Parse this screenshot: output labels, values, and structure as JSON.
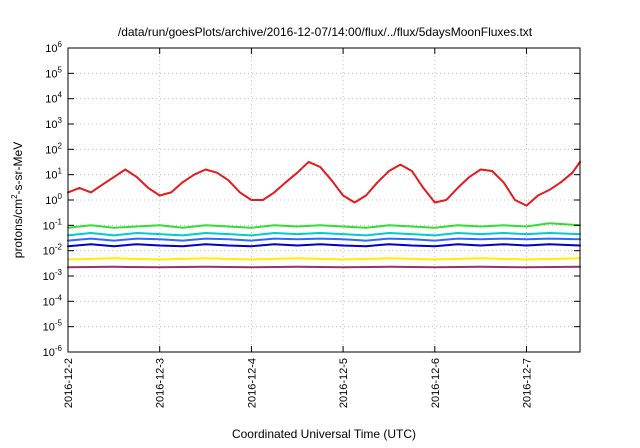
{
  "chart_data": {
    "type": "line",
    "title": "/data/run/goesPlots/archive/2016-12-07/14:00/flux/../flux/5daysMoonFluxes.txt",
    "xlabel": "Coordinated Universal Time (UTC)",
    "ylabel": {
      "prefix": "protons/cm",
      "sup": "2",
      "suffix": "-s-sr-MeV"
    },
    "y_scale": "log",
    "ylim_exponents": [
      -6,
      6
    ],
    "y_tick_base": "10",
    "y_tick_exponents": [
      "-6",
      "-5",
      "-4",
      "-3",
      "-2",
      "-1",
      "0",
      "1",
      "2",
      "3",
      "4",
      "5",
      "6"
    ],
    "xlim": [
      "2016-12-02",
      "2016-12-07T14:00"
    ],
    "x_ticks": [
      "2016-12-2",
      "2016-12-3",
      "2016-12-4",
      "2016-12-5",
      "2016-12-6",
      "2016-12-7"
    ],
    "grid": true,
    "legend": "none",
    "series": [
      {
        "color": "#e41a1c",
        "values": [
          [
            "2016-12-02T00:00",
            2.0
          ],
          [
            "2016-12-02T03:00",
            3.0
          ],
          [
            "2016-12-02T06:00",
            2.0
          ],
          [
            "2016-12-02T09:00",
            4.0
          ],
          [
            "2016-12-02T12:00",
            8.0
          ],
          [
            "2016-12-02T15:00",
            16.0
          ],
          [
            "2016-12-02T18:00",
            8.0
          ],
          [
            "2016-12-02T21:00",
            3.0
          ],
          [
            "2016-12-03T00:00",
            1.5
          ],
          [
            "2016-12-03T03:00",
            2.0
          ],
          [
            "2016-12-03T06:00",
            5.0
          ],
          [
            "2016-12-03T09:00",
            10.0
          ],
          [
            "2016-12-03T12:00",
            16.0
          ],
          [
            "2016-12-03T15:00",
            12.0
          ],
          [
            "2016-12-03T18:00",
            6.0
          ],
          [
            "2016-12-03T21:00",
            2.0
          ],
          [
            "2016-12-04T00:00",
            1.0
          ],
          [
            "2016-12-04T03:00",
            1.0
          ],
          [
            "2016-12-04T06:00",
            2.0
          ],
          [
            "2016-12-04T09:00",
            5.0
          ],
          [
            "2016-12-04T12:00",
            12.0
          ],
          [
            "2016-12-04T15:00",
            32.0
          ],
          [
            "2016-12-04T18:00",
            20.0
          ],
          [
            "2016-12-04T21:00",
            6.0
          ],
          [
            "2016-12-05T00:00",
            1.5
          ],
          [
            "2016-12-05T03:00",
            0.8
          ],
          [
            "2016-12-05T06:00",
            1.5
          ],
          [
            "2016-12-05T09:00",
            5.0
          ],
          [
            "2016-12-05T12:00",
            14.0
          ],
          [
            "2016-12-05T15:00",
            25.0
          ],
          [
            "2016-12-05T18:00",
            14.0
          ],
          [
            "2016-12-05T21:00",
            3.0
          ],
          [
            "2016-12-06T00:00",
            0.8
          ],
          [
            "2016-12-06T03:00",
            1.0
          ],
          [
            "2016-12-06T06:00",
            3.0
          ],
          [
            "2016-12-06T09:00",
            8.0
          ],
          [
            "2016-12-06T12:00",
            16.0
          ],
          [
            "2016-12-06T15:00",
            14.0
          ],
          [
            "2016-12-06T18:00",
            5.0
          ],
          [
            "2016-12-06T21:00",
            1.0
          ],
          [
            "2016-12-07T00:00",
            0.6
          ],
          [
            "2016-12-07T03:00",
            1.5
          ],
          [
            "2016-12-07T06:00",
            2.5
          ],
          [
            "2016-12-07T09:00",
            5.0
          ],
          [
            "2016-12-07T12:00",
            12.0
          ],
          [
            "2016-12-07T14:00",
            32.0
          ]
        ]
      },
      {
        "color": "#33dd33",
        "values": [
          [
            "2016-12-02T00:00",
            0.08
          ],
          [
            "2016-12-02T06:00",
            0.1
          ],
          [
            "2016-12-02T12:00",
            0.08
          ],
          [
            "2016-12-02T18:00",
            0.09
          ],
          [
            "2016-12-03T00:00",
            0.1
          ],
          [
            "2016-12-03T06:00",
            0.08
          ],
          [
            "2016-12-03T12:00",
            0.1
          ],
          [
            "2016-12-03T18:00",
            0.09
          ],
          [
            "2016-12-04T00:00",
            0.08
          ],
          [
            "2016-12-04T06:00",
            0.1
          ],
          [
            "2016-12-04T12:00",
            0.09
          ],
          [
            "2016-12-04T18:00",
            0.1
          ],
          [
            "2016-12-05T00:00",
            0.09
          ],
          [
            "2016-12-05T06:00",
            0.08
          ],
          [
            "2016-12-05T12:00",
            0.1
          ],
          [
            "2016-12-05T18:00",
            0.09
          ],
          [
            "2016-12-06T00:00",
            0.08
          ],
          [
            "2016-12-06T06:00",
            0.1
          ],
          [
            "2016-12-06T12:00",
            0.09
          ],
          [
            "2016-12-06T18:00",
            0.1
          ],
          [
            "2016-12-07T00:00",
            0.09
          ],
          [
            "2016-12-07T06:00",
            0.12
          ],
          [
            "2016-12-07T14:00",
            0.1
          ]
        ]
      },
      {
        "color": "#00cccc",
        "values": [
          [
            "2016-12-02T00:00",
            0.04
          ],
          [
            "2016-12-02T06:00",
            0.05
          ],
          [
            "2016-12-02T12:00",
            0.04
          ],
          [
            "2016-12-02T18:00",
            0.05
          ],
          [
            "2016-12-03T00:00",
            0.045
          ],
          [
            "2016-12-03T06:00",
            0.04
          ],
          [
            "2016-12-03T12:00",
            0.05
          ],
          [
            "2016-12-03T18:00",
            0.045
          ],
          [
            "2016-12-04T00:00",
            0.04
          ],
          [
            "2016-12-04T06:00",
            0.05
          ],
          [
            "2016-12-04T12:00",
            0.045
          ],
          [
            "2016-12-04T18:00",
            0.05
          ],
          [
            "2016-12-05T00:00",
            0.045
          ],
          [
            "2016-12-05T06:00",
            0.04
          ],
          [
            "2016-12-05T12:00",
            0.05
          ],
          [
            "2016-12-05T18:00",
            0.045
          ],
          [
            "2016-12-06T00:00",
            0.04
          ],
          [
            "2016-12-06T06:00",
            0.05
          ],
          [
            "2016-12-06T12:00",
            0.045
          ],
          [
            "2016-12-06T18:00",
            0.05
          ],
          [
            "2016-12-07T00:00",
            0.045
          ],
          [
            "2016-12-07T06:00",
            0.05
          ],
          [
            "2016-12-07T14:00",
            0.045
          ]
        ]
      },
      {
        "color": "#3366ff",
        "values": [
          [
            "2016-12-02T00:00",
            0.025
          ],
          [
            "2016-12-02T06:00",
            0.03
          ],
          [
            "2016-12-02T12:00",
            0.025
          ],
          [
            "2016-12-02T18:00",
            0.03
          ],
          [
            "2016-12-03T00:00",
            0.028
          ],
          [
            "2016-12-03T06:00",
            0.025
          ],
          [
            "2016-12-03T12:00",
            0.03
          ],
          [
            "2016-12-03T18:00",
            0.028
          ],
          [
            "2016-12-04T00:00",
            0.025
          ],
          [
            "2016-12-04T06:00",
            0.03
          ],
          [
            "2016-12-04T12:00",
            0.028
          ],
          [
            "2016-12-04T18:00",
            0.03
          ],
          [
            "2016-12-05T00:00",
            0.028
          ],
          [
            "2016-12-05T06:00",
            0.025
          ],
          [
            "2016-12-05T12:00",
            0.03
          ],
          [
            "2016-12-05T18:00",
            0.028
          ],
          [
            "2016-12-06T00:00",
            0.025
          ],
          [
            "2016-12-06T06:00",
            0.03
          ],
          [
            "2016-12-06T12:00",
            0.028
          ],
          [
            "2016-12-06T18:00",
            0.03
          ],
          [
            "2016-12-07T00:00",
            0.028
          ],
          [
            "2016-12-07T06:00",
            0.03
          ],
          [
            "2016-12-07T14:00",
            0.028
          ]
        ]
      },
      {
        "color": "#0000cc",
        "values": [
          [
            "2016-12-02T00:00",
            0.015
          ],
          [
            "2016-12-02T06:00",
            0.018
          ],
          [
            "2016-12-02T12:00",
            0.015
          ],
          [
            "2016-12-02T18:00",
            0.018
          ],
          [
            "2016-12-03T00:00",
            0.016
          ],
          [
            "2016-12-03T06:00",
            0.015
          ],
          [
            "2016-12-03T12:00",
            0.018
          ],
          [
            "2016-12-03T18:00",
            0.016
          ],
          [
            "2016-12-04T00:00",
            0.015
          ],
          [
            "2016-12-04T06:00",
            0.018
          ],
          [
            "2016-12-04T12:00",
            0.016
          ],
          [
            "2016-12-04T18:00",
            0.018
          ],
          [
            "2016-12-05T00:00",
            0.016
          ],
          [
            "2016-12-05T06:00",
            0.015
          ],
          [
            "2016-12-05T12:00",
            0.018
          ],
          [
            "2016-12-05T18:00",
            0.016
          ],
          [
            "2016-12-06T00:00",
            0.015
          ],
          [
            "2016-12-06T06:00",
            0.018
          ],
          [
            "2016-12-06T12:00",
            0.016
          ],
          [
            "2016-12-06T18:00",
            0.018
          ],
          [
            "2016-12-07T00:00",
            0.016
          ],
          [
            "2016-12-07T06:00",
            0.018
          ],
          [
            "2016-12-07T14:00",
            0.016
          ]
        ]
      },
      {
        "color": "#ffee00",
        "values": [
          [
            "2016-12-02T00:00",
            0.0045
          ],
          [
            "2016-12-02T12:00",
            0.005
          ],
          [
            "2016-12-03T00:00",
            0.0045
          ],
          [
            "2016-12-03T12:00",
            0.005
          ],
          [
            "2016-12-04T00:00",
            0.0045
          ],
          [
            "2016-12-04T12:00",
            0.005
          ],
          [
            "2016-12-05T00:00",
            0.0045
          ],
          [
            "2016-12-05T12:00",
            0.005
          ],
          [
            "2016-12-06T00:00",
            0.0045
          ],
          [
            "2016-12-06T12:00",
            0.005
          ],
          [
            "2016-12-07T00:00",
            0.0045
          ],
          [
            "2016-12-07T14:00",
            0.005
          ]
        ]
      },
      {
        "color": "#993366",
        "values": [
          [
            "2016-12-02T00:00",
            0.0022
          ],
          [
            "2016-12-02T12:00",
            0.0023
          ],
          [
            "2016-12-03T00:00",
            0.0022
          ],
          [
            "2016-12-03T12:00",
            0.0023
          ],
          [
            "2016-12-04T00:00",
            0.0022
          ],
          [
            "2016-12-04T12:00",
            0.0023
          ],
          [
            "2016-12-05T00:00",
            0.0022
          ],
          [
            "2016-12-05T12:00",
            0.0023
          ],
          [
            "2016-12-06T00:00",
            0.0022
          ],
          [
            "2016-12-06T12:00",
            0.0023
          ],
          [
            "2016-12-07T00:00",
            0.0022
          ],
          [
            "2016-12-07T14:00",
            0.0023
          ]
        ]
      }
    ]
  }
}
